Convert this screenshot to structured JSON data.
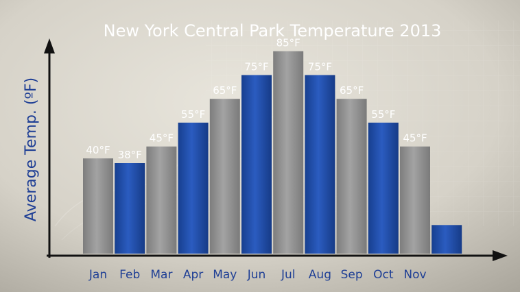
{
  "chart_data": {
    "type": "bar",
    "title": "New York Central Park Temperature 2013",
    "ylabel": "Average Temp. (ºF)",
    "xlabel": "",
    "categories": [
      "Jan",
      "Feb",
      "Mar",
      "Apr",
      "May",
      "Jun",
      "Jul",
      "Aug",
      "Sep",
      "Oct",
      "Nov",
      ""
    ],
    "values": [
      40,
      38,
      45,
      55,
      65,
      75,
      85,
      75,
      65,
      55,
      45,
      12
    ],
    "data_labels": [
      "40°F",
      "38°F",
      "45°F",
      "55°F",
      "65°F",
      "75°F",
      "85°F",
      "75°F",
      "65°F",
      "55°F",
      "45°F",
      ""
    ],
    "bar_colors": [
      "#8f8f8f",
      "#1f4fa6",
      "#8f8f8f",
      "#1f4fa6",
      "#8f8f8f",
      "#1f4fa6",
      "#8f8f8f",
      "#1f4fa6",
      "#8f8f8f",
      "#1f4fa6",
      "#8f8f8f",
      "#1f4fa6"
    ],
    "ylim": [
      0,
      95
    ],
    "grid": false,
    "legend": "none"
  },
  "colors": {
    "title": "#ffffff",
    "axis": "#111111",
    "ylabel": "#1f3f95",
    "tick_label": "#1f3f95",
    "data_label": "#ffffff",
    "background_light": "#e4e0d6",
    "background_dark": "#a9a59b"
  }
}
